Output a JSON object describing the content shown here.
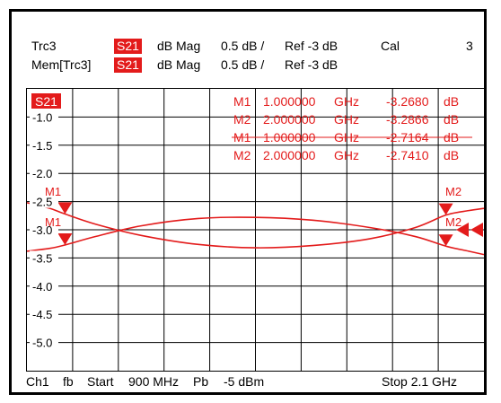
{
  "header": {
    "row1": {
      "trace": "Trc3",
      "param": "S21",
      "format": "dB Mag",
      "scale": "0.5 dB /",
      "ref": "Ref -3 dB",
      "cal": "Cal",
      "channel_num": "3"
    },
    "row2": {
      "trace": "Mem[Trc3]",
      "param": "S21",
      "format": "dB Mag",
      "scale": "0.5 dB /",
      "ref": "Ref -3 dB"
    }
  },
  "plot": {
    "trace_badge": "S21",
    "marker_table": [
      {
        "name": "M1",
        "freq": "1.000000",
        "unit": "GHz",
        "value": "-3.2680",
        "vunit": "dB"
      },
      {
        "name": "M2",
        "freq": "2.000000",
        "unit": "GHz",
        "value": "-3.2866",
        "vunit": "dB"
      },
      {
        "name": "M1",
        "freq": "1.000000",
        "unit": "GHz",
        "value": "-2.7164",
        "vunit": "dB"
      },
      {
        "name": "M2",
        "freq": "2.000000",
        "unit": "GHz",
        "value": "-2.7410",
        "vunit": "dB"
      }
    ],
    "y_ticks": [
      "-1.0",
      "-1.5",
      "-2.0",
      "-2.5",
      "-3.0",
      "-3.5",
      "-4.0",
      "-4.5",
      "-5.0"
    ],
    "marker_labels": {
      "m1_top": "M1",
      "m1_bottom": "M1",
      "m2_top": "M2",
      "m2_bottom": "M2"
    },
    "colors": {
      "trace": "#e31b1b",
      "grid": "#000000"
    }
  },
  "footer": {
    "channel": "Ch1",
    "fb": "fb",
    "start": "Start",
    "start_freq": "900 MHz",
    "power_label": "Pb",
    "power": "-5 dBm",
    "stop": "Stop 2.1 GHz"
  },
  "chart_data": {
    "type": "line",
    "ylim": [
      -5.5,
      -0.5
    ],
    "xlim_ghz": [
      0.9,
      2.1
    ],
    "series": [
      {
        "x": [
          0.9,
          0.96,
          1.0,
          1.08,
          1.2,
          1.35,
          1.5,
          1.65,
          1.8,
          1.92,
          2.0,
          2.06,
          2.1
        ],
        "values": [
          -3.38,
          -3.33,
          -3.27,
          -3.12,
          -2.93,
          -2.8,
          -2.78,
          -2.83,
          -2.96,
          -3.12,
          -3.29,
          -3.38,
          -3.44
        ]
      },
      {
        "x": [
          0.9,
          0.96,
          1.0,
          1.08,
          1.2,
          1.35,
          1.5,
          1.65,
          1.8,
          1.92,
          2.0,
          2.06,
          2.1
        ],
        "values": [
          -2.52,
          -2.62,
          -2.72,
          -2.9,
          -3.1,
          -3.26,
          -3.32,
          -3.28,
          -3.16,
          -2.96,
          -2.74,
          -2.66,
          -2.62
        ]
      }
    ]
  }
}
